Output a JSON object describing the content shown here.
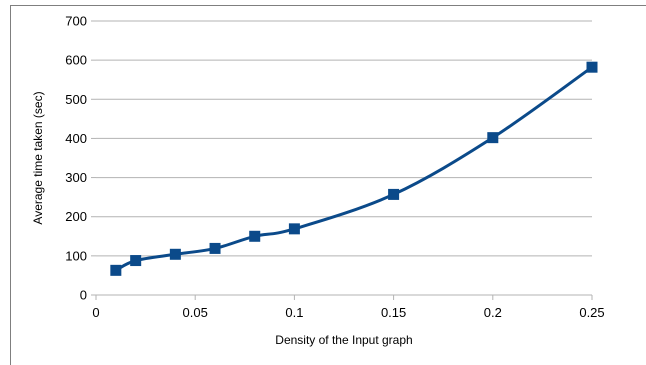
{
  "chart_data": {
    "type": "line",
    "title": "",
    "xlabel": "Density of the Input graph",
    "ylabel": "Average time taken (sec)",
    "xlim": [
      0,
      0.25
    ],
    "ylim": [
      0,
      700
    ],
    "x_ticks": [
      0,
      0.05,
      0.1,
      0.15,
      0.2,
      0.25
    ],
    "x_tick_labels": [
      "0",
      "0.05",
      "0.1",
      "0.15",
      "0.2",
      "0.25"
    ],
    "y_ticks": [
      0,
      100,
      200,
      300,
      400,
      500,
      600,
      700
    ],
    "y_tick_labels": [
      "0",
      "100",
      "200",
      "300",
      "400",
      "500",
      "600",
      "700"
    ],
    "grid": "horizontal",
    "legend": "none",
    "series": [
      {
        "color": "#0b4a8a",
        "marker": "square",
        "smooth": true,
        "x": [
          0.01,
          0.02,
          0.04,
          0.06,
          0.08,
          0.1,
          0.15,
          0.2,
          0.25
        ],
        "y": [
          63,
          88,
          104,
          119,
          150,
          169,
          257,
          402,
          582
        ]
      }
    ]
  }
}
